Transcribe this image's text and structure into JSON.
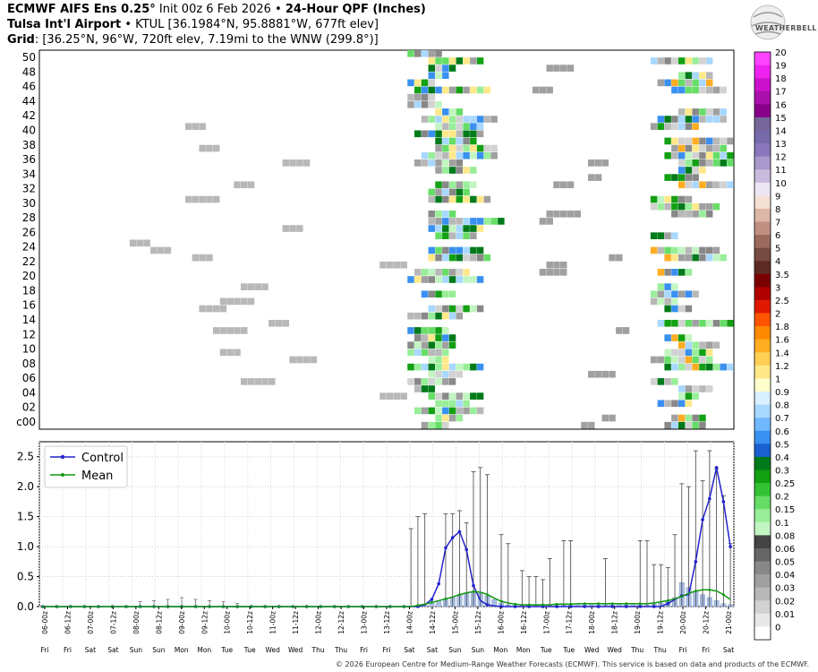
{
  "header": {
    "line1_bold": "ECMWF AIFS Ens 0.25°",
    "line1_init": " Init 00z 6 Feb 2026 • ",
    "line1_product": "24-Hour QPF (Inches)",
    "line2_bold": "Tulsa Int'l Airport",
    "line2_rest": " • KTUL [36.1984°N, 95.8881°W, 677ft elev]",
    "line3_bold": "Grid",
    "line3_rest": ": [36.25°N, 96°W, 720ft elev, 7.19mi to the WNW (299.8°)]"
  },
  "logo_text": "WEATHERBELL",
  "footer": "© 2026 European Centre for Medium-Range Weather Forecasts (ECMWF). This service is based on data and products of the ECMWF.",
  "colors": {
    "control": "#2222cc",
    "mean": "#119911",
    "bars": "#a9bfe6",
    "whisker": "#444444"
  },
  "colorbar": {
    "labels": [
      "20",
      "19",
      "18",
      "17",
      "16",
      "15",
      "14",
      "13",
      "12",
      "11",
      "10",
      "9",
      "8",
      "7",
      "6",
      "5",
      "4",
      "3.5",
      "3",
      "2.5",
      "2",
      "1.8",
      "1.6",
      "1.4",
      "1.2",
      "1",
      "0.9",
      "0.8",
      "0.7",
      "0.6",
      "0.5",
      "0.4",
      "0.3",
      "0.25",
      "0.2",
      "0.15",
      "0.1",
      "0.08",
      "0.06",
      "0.05",
      "0.04",
      "0.03",
      "0.02",
      "0.01",
      "0"
    ],
    "colors": [
      "#ff44ff",
      "#ee22ee",
      "#cc11cc",
      "#aa11aa",
      "#880088",
      "#776699",
      "#776aaa",
      "#8877bb",
      "#a899cc",
      "#c8bbdd",
      "#ece6f4",
      "#f4e0d4",
      "#dcb6a6",
      "#c09080",
      "#9a6a5c",
      "#764a40",
      "#5c2a22",
      "#7a0000",
      "#b00000",
      "#e01a00",
      "#ff5500",
      "#ff8a00",
      "#ffad22",
      "#ffcf55",
      "#ffe88a",
      "#ffffcc",
      "#d8f0ff",
      "#a8d8ff",
      "#70b8ff",
      "#3a90f0",
      "#1a60d0",
      "#007a1a",
      "#13a013",
      "#33c233",
      "#66dd66",
      "#99ee99",
      "#c2f5c2",
      "#444444",
      "#666666",
      "#888888",
      "#a0a0a0",
      "#b8b8b8",
      "#d2d2d2",
      "#e8e8e8",
      "#ffffff"
    ]
  },
  "plume": {
    "ylabels": [
      "c00",
      "02",
      "04",
      "06",
      "08",
      "10",
      "12",
      "14",
      "16",
      "18",
      "20",
      "22",
      "24",
      "26",
      "28",
      "30",
      "32",
      "34",
      "36",
      "38",
      "40",
      "42",
      "44",
      "46",
      "48",
      "50"
    ],
    "members": 51
  },
  "chart_data": {
    "type": "line",
    "title": "",
    "xlabel": "",
    "ylabel": "",
    "ylim": [
      0,
      2.75
    ],
    "yticks": [
      0.0,
      0.5,
      1.0,
      1.5,
      2.0,
      2.5
    ],
    "ytick_labels": [
      "0.0",
      "0.5",
      "1.0",
      "1.5",
      "2.0",
      "2.5"
    ],
    "legend_position": "top-left",
    "grid": true,
    "x_top": [
      "06-00z",
      "06-12z",
      "07-00z",
      "07-12z",
      "08-00z",
      "08-12z",
      "09-00z",
      "09-12z",
      "10-00z",
      "10-12z",
      "11-00z",
      "11-12z",
      "12-00z",
      "12-12z",
      "13-00z",
      "13-12z",
      "14-00z",
      "14-12z",
      "15-00z",
      "15-12z",
      "16-00z",
      "16-12z",
      "17-00z",
      "17-12z",
      "18-00z",
      "18-12z",
      "19-00z",
      "19-12z",
      "20-00z",
      "20-12z",
      "21-00z"
    ],
    "x_bottom": [
      "Fri",
      "Fri",
      "Sat",
      "Sat",
      "Sun",
      "Sun",
      "Mon",
      "Mon",
      "Tue",
      "Tue",
      "Wed",
      "Wed",
      "Thu",
      "Thu",
      "Fri",
      "Fri",
      "Sat",
      "Sat",
      "Sun",
      "Sun",
      "Mon",
      "Mon",
      "Tue",
      "Tue",
      "Wed",
      "Wed",
      "Thu",
      "Thu",
      "Fri",
      "Fri",
      "Sat"
    ],
    "series": [
      {
        "name": "Control",
        "values": [
          0,
          0,
          0,
          0,
          0,
          0,
          0,
          0,
          0,
          0,
          0,
          0,
          0,
          0,
          0,
          0,
          0,
          0,
          0,
          0,
          0,
          0,
          0,
          0,
          0,
          0,
          0,
          0,
          0,
          0,
          0,
          0,
          0,
          0,
          0,
          0,
          0,
          0,
          0,
          0,
          0,
          0,
          0,
          0,
          0,
          0,
          0,
          0,
          0,
          0,
          0,
          0,
          0,
          0,
          0,
          0.03,
          0.12,
          0.38,
          0.98,
          1.15,
          1.25,
          0.95,
          0.35,
          0.1,
          0.03,
          0.01,
          0,
          0,
          0,
          0,
          0,
          0,
          0,
          0,
          0,
          0,
          0,
          0,
          0,
          0,
          0,
          0,
          0,
          0,
          0,
          0,
          0,
          0,
          0,
          0,
          0.05,
          0.12,
          0.18,
          0.2,
          0.75,
          1.45,
          1.8,
          2.32,
          1.75,
          1.0
        ]
      },
      {
        "name": "Mean",
        "values": [
          0,
          0,
          0,
          0,
          0,
          0,
          0,
          0,
          0,
          0,
          0,
          0,
          0,
          0,
          0,
          0,
          0,
          0,
          0,
          0,
          0,
          0,
          0,
          0,
          0,
          0,
          0,
          0,
          0,
          0,
          0,
          0,
          0,
          0,
          0,
          0,
          0,
          0,
          0,
          0,
          0,
          0,
          0,
          0,
          0,
          0,
          0,
          0,
          0,
          0,
          0,
          0,
          0,
          0,
          0.02,
          0.04,
          0.07,
          0.1,
          0.13,
          0.16,
          0.2,
          0.23,
          0.25,
          0.24,
          0.2,
          0.14,
          0.09,
          0.06,
          0.04,
          0.03,
          0.03,
          0.03,
          0.03,
          0.03,
          0.04,
          0.04,
          0.04,
          0.05,
          0.05,
          0.05,
          0.05,
          0.05,
          0.05,
          0.05,
          0.05,
          0.05,
          0.05,
          0.05,
          0.06,
          0.08,
          0.1,
          0.13,
          0.17,
          0.22,
          0.26,
          0.28,
          0.28,
          0.26,
          0.2,
          0.12
        ]
      }
    ],
    "bars": [
      0,
      0,
      0,
      0,
      0,
      0,
      0,
      0,
      0,
      0,
      0,
      0,
      0,
      0,
      0,
      0,
      0,
      0,
      0,
      0,
      0,
      0,
      0,
      0,
      0,
      0,
      0,
      0,
      0,
      0,
      0,
      0,
      0,
      0,
      0,
      0,
      0,
      0,
      0,
      0,
      0,
      0,
      0,
      0,
      0,
      0,
      0,
      0,
      0,
      0,
      0,
      0,
      0,
      0.01,
      0.02,
      0.04,
      0.06,
      0.09,
      0.13,
      0.16,
      0.2,
      0.22,
      0.24,
      0.22,
      0.18,
      0.12,
      0.06,
      0.03,
      0.02,
      0.02,
      0.02,
      0.02,
      0.02,
      0.02,
      0.02,
      0.03,
      0.03,
      0.03,
      0.03,
      0.03,
      0.03,
      0.03,
      0.03,
      0.03,
      0.03,
      0.03,
      0.03,
      0.03,
      0.04,
      0.06,
      0.1,
      0.15,
      0.4,
      0.32,
      0.25,
      0.2,
      0.15,
      0.1,
      0.05,
      0.03
    ],
    "whisker_max": [
      0,
      0,
      0,
      0,
      0,
      0,
      0,
      0,
      0,
      0,
      0,
      0,
      0,
      0,
      0,
      0,
      0,
      0,
      0,
      0,
      0,
      0,
      0,
      0,
      0,
      0,
      0,
      0,
      0,
      0,
      0,
      0,
      0,
      0,
      0,
      0,
      0,
      0,
      0,
      0,
      0,
      0,
      0,
      0,
      0,
      0,
      0,
      0,
      0,
      0,
      0,
      0,
      0,
      1.3,
      1.5,
      1.55,
      0,
      0,
      1.55,
      1.55,
      1.6,
      1.4,
      2.25,
      2.32,
      2.2,
      0,
      1.2,
      1.05,
      0,
      0.6,
      0.5,
      0.5,
      0.45,
      0.8,
      0,
      1.1,
      1.1,
      0,
      0,
      0,
      0,
      0.8,
      0,
      0,
      0,
      0,
      1.1,
      1.1,
      0.7,
      0.7,
      0.65,
      1.2,
      2.05,
      2.0,
      2.6,
      2.1,
      2.6,
      2.3,
      1.85,
      1.05
    ],
    "whisker_minor": [
      0,
      0,
      0,
      0,
      0,
      0,
      0,
      0,
      0,
      0,
      0,
      0,
      0,
      0,
      0.08,
      0,
      0.1,
      0,
      0.12,
      0,
      0.15,
      0,
      0.12,
      0,
      0.1,
      0,
      0.08,
      0,
      0.05,
      0,
      0,
      0,
      0,
      0,
      0,
      0,
      0,
      0,
      0,
      0,
      0,
      0,
      0,
      0,
      0,
      0,
      0,
      0,
      0,
      0,
      0,
      0,
      0,
      0,
      0,
      0,
      0,
      0,
      0,
      0,
      0,
      0,
      0,
      0,
      0,
      0,
      0,
      0,
      0,
      0,
      0,
      0,
      0,
      0,
      0,
      0,
      0,
      0,
      0,
      0,
      0,
      0,
      0,
      0,
      0,
      0,
      0,
      0,
      0,
      0,
      0,
      0,
      0,
      0,
      0,
      0,
      0,
      0,
      0,
      0
    ]
  }
}
